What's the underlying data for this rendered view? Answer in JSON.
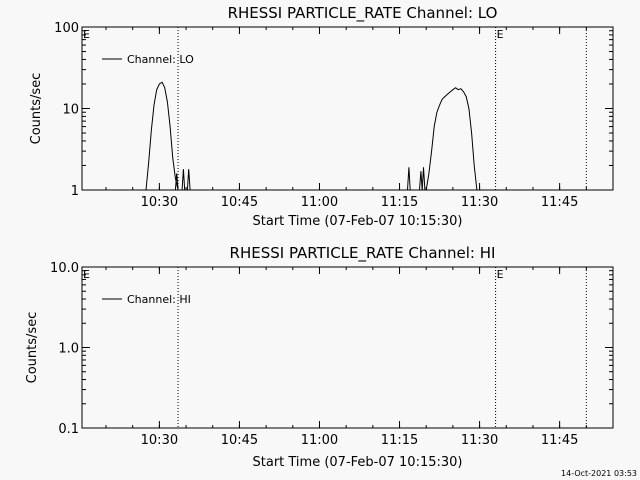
{
  "footer": {
    "timestamp": "14-Oct-2021 03:53"
  },
  "chart_data": [
    {
      "type": "line",
      "title": "RHESSI PARTICLE_RATE Channel: LO",
      "xlabel": "Start Time (07-Feb-07 10:15:30)",
      "ylabel": "Counts/sec",
      "yscale": "log",
      "xlim": [
        "10:15:30",
        "11:55:00"
      ],
      "ylim": [
        1,
        100
      ],
      "x_ticks": [
        "10:30",
        "10:45",
        "11:00",
        "11:15",
        "11:30",
        "11:45"
      ],
      "y_ticks": [
        "1",
        "10",
        "100"
      ],
      "legend": {
        "placement": "top-left",
        "entries": [
          "Channel: LO"
        ]
      },
      "markers": [
        {
          "label": "E",
          "time": "10:15:30"
        },
        {
          "label": "",
          "time": "10:33:30"
        },
        {
          "label": "E",
          "time": "11:33:00"
        },
        {
          "label": "",
          "time": "11:50:00"
        }
      ],
      "series": [
        {
          "name": "Channel: LO",
          "segments": [
            {
              "x": [
                "10:27:30",
                "10:28:00",
                "10:28:30",
                "10:29:00",
                "10:29:30",
                "10:30:00",
                "10:30:30",
                "10:31:00",
                "10:31:30",
                "10:32:00",
                "10:32:30",
                "10:33:00",
                "10:33:30"
              ],
              "y": [
                1,
                2.2,
                5.5,
                11,
                17,
                20,
                21,
                18,
                12,
                6,
                2.5,
                1.4,
                1
              ]
            },
            {
              "x": [
                "10:33:00",
                "10:33:15",
                "10:33:30"
              ],
              "y": [
                1,
                1.6,
                1
              ]
            },
            {
              "x": [
                "10:34:15",
                "10:34:30",
                "10:34:45"
              ],
              "y": [
                1,
                1.8,
                1
              ]
            },
            {
              "x": [
                "10:35:15",
                "10:35:30",
                "10:35:45"
              ],
              "y": [
                1,
                1.8,
                1
              ]
            },
            {
              "x": [
                "11:16:30",
                "11:16:45",
                "11:17:00"
              ],
              "y": [
                1,
                1.9,
                1
              ]
            },
            {
              "x": [
                "11:18:45",
                "11:19:00",
                "11:19:15"
              ],
              "y": [
                1,
                1.7,
                1
              ]
            },
            {
              "x": [
                "11:19:15",
                "11:19:30",
                "11:19:45"
              ],
              "y": [
                1,
                1.9,
                1
              ]
            },
            {
              "x": [
                "11:20:00",
                "11:20:30",
                "11:21:00",
                "11:21:30",
                "11:22:00",
                "11:22:30",
                "11:23:00",
                "11:23:30",
                "11:24:00",
                "11:24:30",
                "11:25:00",
                "11:25:30",
                "11:26:00",
                "11:26:30",
                "11:27:00",
                "11:27:30",
                "11:28:00",
                "11:28:30",
                "11:29:00",
                "11:29:30"
              ],
              "y": [
                1,
                1.6,
                3,
                6,
                9,
                11,
                13,
                14,
                15,
                16,
                17,
                18,
                17,
                17.5,
                16,
                14,
                10,
                5,
                2,
                1
              ]
            }
          ]
        }
      ]
    },
    {
      "type": "line",
      "title": "RHESSI PARTICLE_RATE Channel: HI",
      "xlabel": "Start Time (07-Feb-07 10:15:30)",
      "ylabel": "Counts/sec",
      "yscale": "log",
      "xlim": [
        "10:15:30",
        "11:55:00"
      ],
      "ylim": [
        0.1,
        10
      ],
      "x_ticks": [
        "10:30",
        "10:45",
        "11:00",
        "11:15",
        "11:30",
        "11:45"
      ],
      "y_ticks": [
        "0.1",
        "1.0",
        "10.0"
      ],
      "legend": {
        "placement": "top-left",
        "entries": [
          "Channel: HI"
        ]
      },
      "markers": [
        {
          "label": "E",
          "time": "10:15:30"
        },
        {
          "label": "",
          "time": "10:33:30"
        },
        {
          "label": "E",
          "time": "11:33:00"
        },
        {
          "label": "",
          "time": "11:50:00"
        }
      ],
      "series": [
        {
          "name": "Channel: HI",
          "segments": []
        }
      ]
    }
  ]
}
